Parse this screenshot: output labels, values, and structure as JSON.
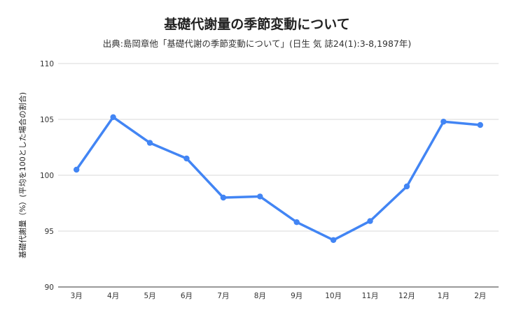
{
  "chart_data": {
    "type": "line",
    "title": "基礎代謝量の季節変動について",
    "subtitle": "出典:島岡章他「基礎代謝の季節変動について」(日生 気 誌24(1):3-8,1987年)",
    "xlabel": "",
    "ylabel": "基礎代謝量（%）(平均を100とした場合の割合)",
    "categories": [
      "3月",
      "4月",
      "5月",
      "6月",
      "7月",
      "8月",
      "9月",
      "10月",
      "11月",
      "12月",
      "1月",
      "2月"
    ],
    "series": [
      {
        "values": [
          100.5,
          105.2,
          102.9,
          101.5,
          98.0,
          98.1,
          95.8,
          94.2,
          95.9,
          99.0,
          104.8,
          104.5
        ]
      }
    ],
    "ylim": [
      90,
      110
    ],
    "yticks": [
      90,
      95,
      100,
      105,
      110
    ],
    "grid": true,
    "legend": "none",
    "colors": {
      "line": "#4285f4",
      "grid": "#d9d9d9",
      "text": "#333333"
    }
  }
}
